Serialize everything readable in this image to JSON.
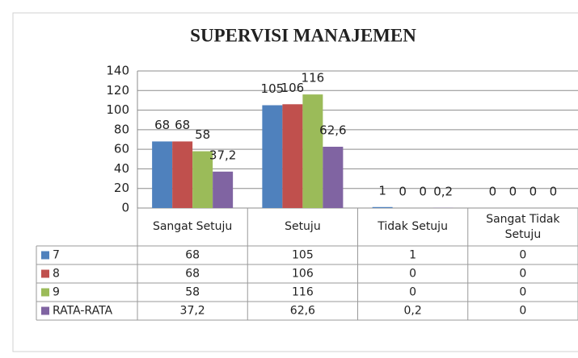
{
  "chart_data": {
    "type": "bar",
    "title": "SUPERVISI MANAJEMEN",
    "categories": [
      "Sangat Setuju",
      "Setuju",
      "Tidak Setuju",
      "Sangat Tidak Setuju"
    ],
    "series": [
      {
        "name": "7",
        "color": "#4f81bd",
        "values": [
          68,
          105,
          1,
          0
        ]
      },
      {
        "name": "8",
        "color": "#c0504d",
        "values": [
          68,
          106,
          0,
          0
        ]
      },
      {
        "name": "9",
        "color": "#9bbb59",
        "values": [
          58,
          116,
          0,
          0
        ]
      },
      {
        "name": "RATA-RATA",
        "color": "#8064a2",
        "values": [
          37.2,
          62.6,
          0.2,
          0
        ],
        "value_labels": [
          "37,2",
          "62,6",
          "0,2",
          "0"
        ]
      }
    ],
    "ylim": [
      0,
      140
    ],
    "yticks": [
      0,
      20,
      40,
      60,
      80,
      100,
      120,
      140
    ],
    "grid": true,
    "data_table": true
  }
}
